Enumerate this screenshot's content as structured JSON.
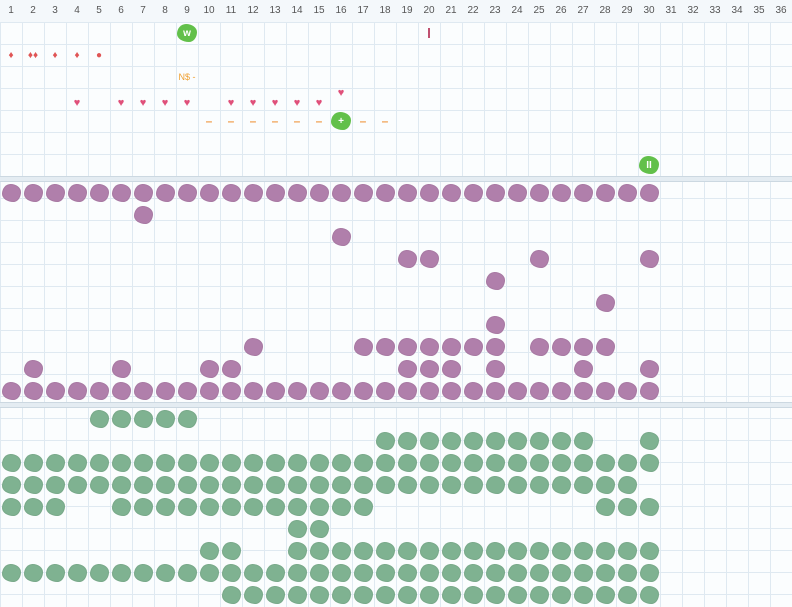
{
  "column_headers": [
    "1",
    "2",
    "3",
    "4",
    "5",
    "6",
    "7",
    "8",
    "9",
    "10",
    "11",
    "12",
    "13",
    "14",
    "15",
    "16",
    "17",
    "18",
    "19",
    "20",
    "21",
    "22",
    "23",
    "24",
    "25",
    "26",
    "27",
    "28",
    "29",
    "30",
    "31",
    "32",
    "33",
    "34",
    "35",
    "36"
  ],
  "markers": {
    "w_badge": "w",
    "plus_badge": "+",
    "ii_badge": "II",
    "ns_label": "N$ -",
    "drop_glyph": "♦",
    "double_drop_glyph": "♦♦",
    "dot_glyph": "●",
    "heart_glyph": "♥",
    "dash_glyph": "–"
  },
  "top_section": {
    "row1": [
      {
        "col": 9,
        "kind": "w_badge"
      },
      {
        "col": 20,
        "kind": "bar"
      }
    ],
    "row2": [
      {
        "col": 1,
        "kind": "drop"
      },
      {
        "col": 2,
        "kind": "double_drop"
      },
      {
        "col": 3,
        "kind": "drop"
      },
      {
        "col": 4,
        "kind": "drop"
      },
      {
        "col": 5,
        "kind": "dot"
      }
    ],
    "row3": [
      {
        "col": 9,
        "kind": "ns_label"
      }
    ],
    "row4": [
      {
        "col": 16,
        "kind": "heart"
      }
    ],
    "row4b": [
      4,
      6,
      7,
      8,
      9,
      11,
      12,
      13,
      14,
      15
    ],
    "row5_dashes": [
      10,
      11,
      12,
      13,
      14,
      15,
      17,
      18
    ],
    "row5_plus_col": 16,
    "row7_ii_col": 30
  },
  "purple_rows": [
    [
      1,
      2,
      3,
      4,
      5,
      6,
      7,
      8,
      9,
      10,
      11,
      12,
      13,
      14,
      15,
      16,
      17,
      18,
      19,
      20,
      21,
      22,
      23,
      24,
      25,
      26,
      27,
      28,
      29,
      30
    ],
    [
      7
    ],
    [
      16
    ],
    [
      19,
      20,
      25,
      30
    ],
    [
      23
    ],
    [
      28
    ],
    [
      23
    ],
    [
      12,
      17,
      18,
      19,
      20,
      21,
      22,
      23,
      25,
      26,
      27,
      28
    ],
    [
      2,
      6,
      10,
      11,
      19,
      20,
      21,
      23,
      27,
      30
    ],
    [
      1,
      2,
      3,
      4,
      5,
      6,
      7,
      8,
      9,
      10,
      11,
      12,
      13,
      14,
      15,
      16,
      17,
      18,
      19,
      20,
      21,
      22,
      23,
      24,
      25,
      26,
      27,
      28,
      29,
      30
    ]
  ],
  "green_rows": [
    [
      5,
      6,
      7,
      8,
      9
    ],
    [
      18,
      19,
      20,
      21,
      22,
      23,
      24,
      25,
      26,
      27,
      30
    ],
    [
      1,
      2,
      3,
      4,
      5,
      6,
      7,
      8,
      9,
      10,
      11,
      12,
      13,
      14,
      15,
      16,
      17,
      18,
      19,
      20,
      21,
      22,
      23,
      24,
      25,
      26,
      27,
      28,
      29,
      30
    ],
    [
      1,
      2,
      3,
      4,
      5,
      6,
      7,
      8,
      9,
      10,
      11,
      12,
      13,
      14,
      15,
      16,
      17,
      18,
      19,
      20,
      21,
      22,
      23,
      24,
      25,
      26,
      27,
      28,
      29
    ],
    [
      1,
      2,
      3,
      6,
      7,
      8,
      9,
      10,
      11,
      12,
      13,
      14,
      15,
      16,
      17,
      28,
      29,
      30
    ],
    [
      14,
      15
    ],
    [
      10,
      11,
      14,
      15,
      16,
      17,
      18,
      19,
      20,
      21,
      22,
      23,
      24,
      25,
      26,
      27,
      28,
      29,
      30
    ],
    [
      1,
      2,
      3,
      4,
      5,
      6,
      7,
      8,
      9,
      10,
      11,
      12,
      13,
      14,
      15,
      16,
      17,
      18,
      19,
      20,
      21,
      22,
      23,
      24,
      25,
      26,
      27,
      28,
      29,
      30
    ],
    [
      11,
      12,
      13,
      14,
      15,
      16,
      17,
      18,
      19,
      20,
      21,
      22,
      23,
      24,
      25,
      26,
      27,
      28,
      29,
      30
    ]
  ]
}
